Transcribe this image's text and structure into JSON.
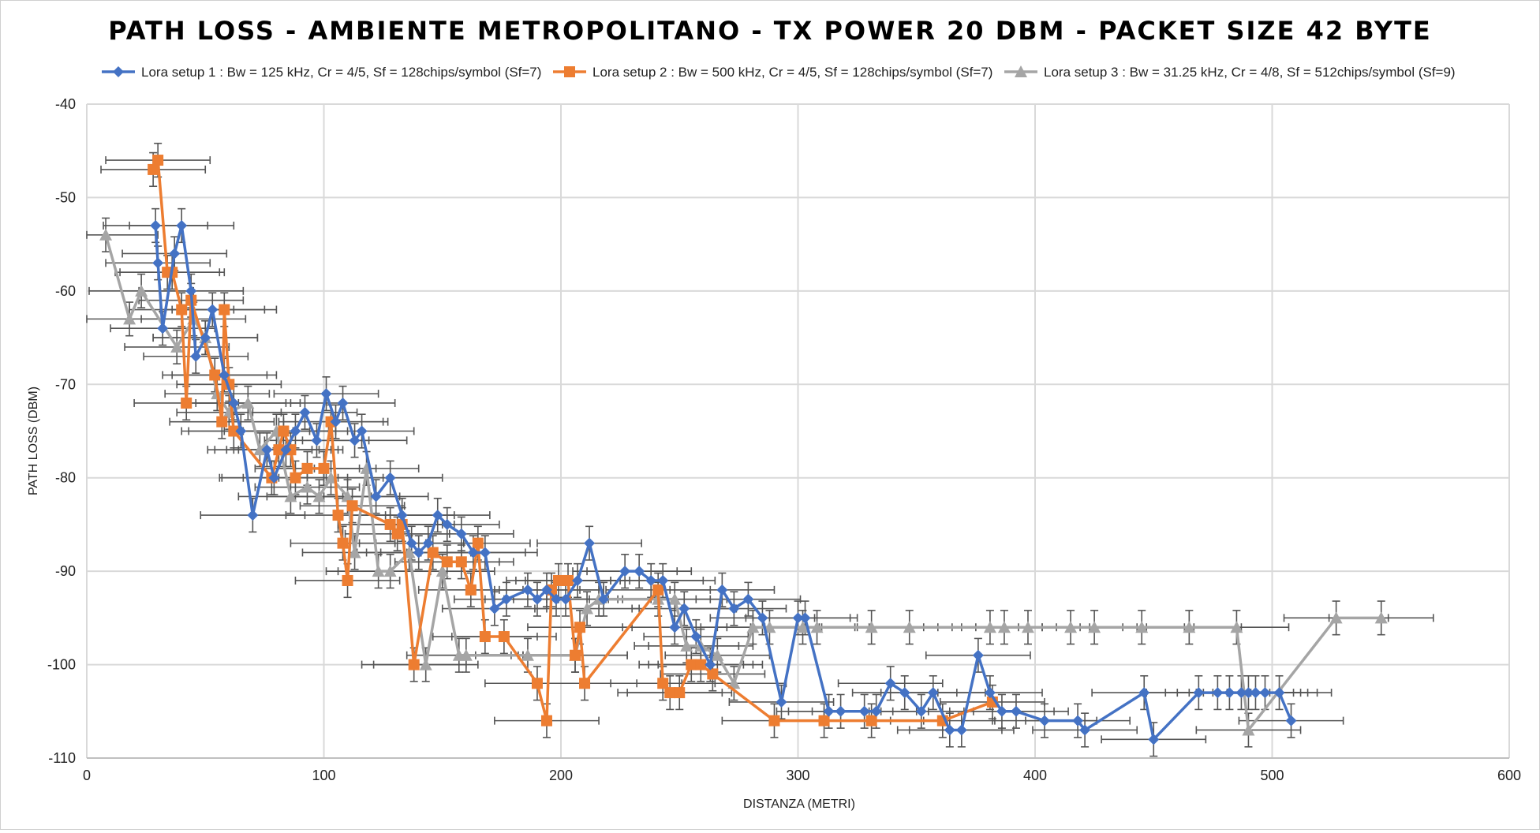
{
  "chart_data": {
    "type": "line",
    "title": "PATH LOSS - AMBIENTE METROPOLITANO - TX POWER 20 DBM - PACKET SIZE 42 BYTE",
    "xlabel": "DISTANZA (METRI)",
    "ylabel": "PATH LOSS (DBM)",
    "xlim": [
      0,
      600
    ],
    "ylim": [
      -110,
      -40
    ],
    "xticks": [
      0,
      100,
      200,
      300,
      400,
      500,
      600
    ],
    "yticks": [
      -40,
      -50,
      -60,
      -70,
      -80,
      -90,
      -100,
      -110
    ],
    "grid": true,
    "legend_position": "top",
    "error_bars": true,
    "series": [
      {
        "name": "Lora setup 1 : Bw = 125 kHz, Cr = 4/5, Sf = 128chips/symbol (Sf=7)",
        "color": "#4472C4",
        "marker": "diamond",
        "x": [
          29,
          30,
          32,
          37,
          40,
          44,
          46,
          50,
          53,
          58,
          62,
          65,
          70,
          76,
          79,
          84,
          88,
          92,
          97,
          101,
          105,
          108,
          113,
          116,
          122,
          128,
          133,
          137,
          140,
          144,
          148,
          152,
          158,
          163,
          168,
          172,
          177,
          186,
          190,
          194,
          198,
          202,
          207,
          212,
          218,
          227,
          233,
          238,
          243,
          248,
          252,
          257,
          263,
          268,
          273,
          279,
          285,
          293,
          300,
          303,
          313,
          318,
          328,
          333,
          339,
          345,
          352,
          357,
          364,
          369,
          376,
          381,
          386,
          392,
          404,
          418,
          421,
          446,
          450,
          469,
          477,
          482,
          487,
          490,
          493,
          497,
          503,
          508
        ],
        "y": [
          -53,
          -57,
          -64,
          -56,
          -53,
          -60,
          -67,
          -65,
          -62,
          -69,
          -72,
          -75,
          -84,
          -77,
          -80,
          -77,
          -75,
          -73,
          -76,
          -71,
          -74,
          -72,
          -76,
          -75,
          -82,
          -80,
          -84,
          -87,
          -88,
          -87,
          -84,
          -85,
          -86,
          -88,
          -88,
          -94,
          -93,
          -92,
          -93,
          -92,
          -93,
          -93,
          -91,
          -87,
          -93,
          -90,
          -90,
          -91,
          -91,
          -96,
          -94,
          -97,
          -100,
          -92,
          -94,
          -93,
          -95,
          -104,
          -95,
          -95,
          -105,
          -105,
          -105,
          -105,
          -102,
          -103,
          -105,
          -103,
          -107,
          -107,
          -99,
          -103,
          -105,
          -105,
          -106,
          -106,
          -107,
          -103,
          -108,
          -103,
          -103,
          -103,
          -103,
          -103,
          -103,
          -103,
          -103,
          -106
        ]
      },
      {
        "name": "Lora setup 2 : Bw = 500 kHz, Cr = 4/5, Sf = 128chips/symbol (Sf=7)",
        "color": "#ED7D31",
        "marker": "square",
        "x": [
          28,
          30,
          34,
          36,
          40,
          42,
          44,
          54,
          57,
          58,
          60,
          62,
          78,
          81,
          83,
          86,
          88,
          93,
          100,
          103,
          106,
          108,
          110,
          112,
          128,
          131,
          133,
          138,
          146,
          152,
          158,
          162,
          165,
          168,
          176,
          190,
          194,
          196,
          199,
          203,
          206,
          208,
          210,
          241,
          243,
          246,
          250,
          255,
          259,
          264,
          290,
          311,
          331,
          361,
          382
        ],
        "y": [
          -47,
          -46,
          -58,
          -58,
          -62,
          -72,
          -61,
          -69,
          -74,
          -62,
          -70,
          -75,
          -80,
          -77,
          -75,
          -77,
          -80,
          -79,
          -79,
          -74,
          -84,
          -87,
          -91,
          -83,
          -85,
          -86,
          -85,
          -100,
          -88,
          -89,
          -89,
          -92,
          -87,
          -97,
          -97,
          -102,
          -106,
          -92,
          -91,
          -91,
          -99,
          -96,
          -102,
          -92,
          -102,
          -103,
          -103,
          -100,
          -100,
          -101,
          -106,
          -106,
          -106,
          -106,
          -104
        ]
      },
      {
        "name": "Lora setup 3 : Bw = 31.25 kHz, Cr = 4/8, Sf = 512chips/symbol (Sf=9)",
        "color": "#A5A5A5",
        "marker": "triangle",
        "x": [
          8,
          18,
          23,
          38,
          45,
          50,
          55,
          60,
          68,
          73,
          80,
          86,
          93,
          98,
          103,
          110,
          113,
          118,
          123,
          128,
          136,
          143,
          150,
          157,
          160,
          186,
          206,
          211,
          216,
          241,
          248,
          253,
          259,
          266,
          273,
          281,
          288,
          302,
          308,
          331,
          347,
          381,
          387,
          397,
          415,
          425,
          445,
          465,
          485,
          490,
          527,
          546
        ],
        "y": [
          -54,
          -63,
          -60,
          -66,
          -63,
          -65,
          -71,
          -73,
          -72,
          -77,
          -75,
          -82,
          -81,
          -82,
          -80,
          -82,
          -88,
          -79,
          -90,
          -90,
          -88,
          -100,
          -90,
          -99,
          -99,
          -99,
          -99,
          -94,
          -93,
          -93,
          -93,
          -98,
          -98,
          -99,
          -102,
          -96,
          -96,
          -96,
          -96,
          -96,
          -96,
          -96,
          -96,
          -96,
          -96,
          -96,
          -96,
          -96,
          -96,
          -107,
          -95,
          -95
        ]
      }
    ]
  }
}
